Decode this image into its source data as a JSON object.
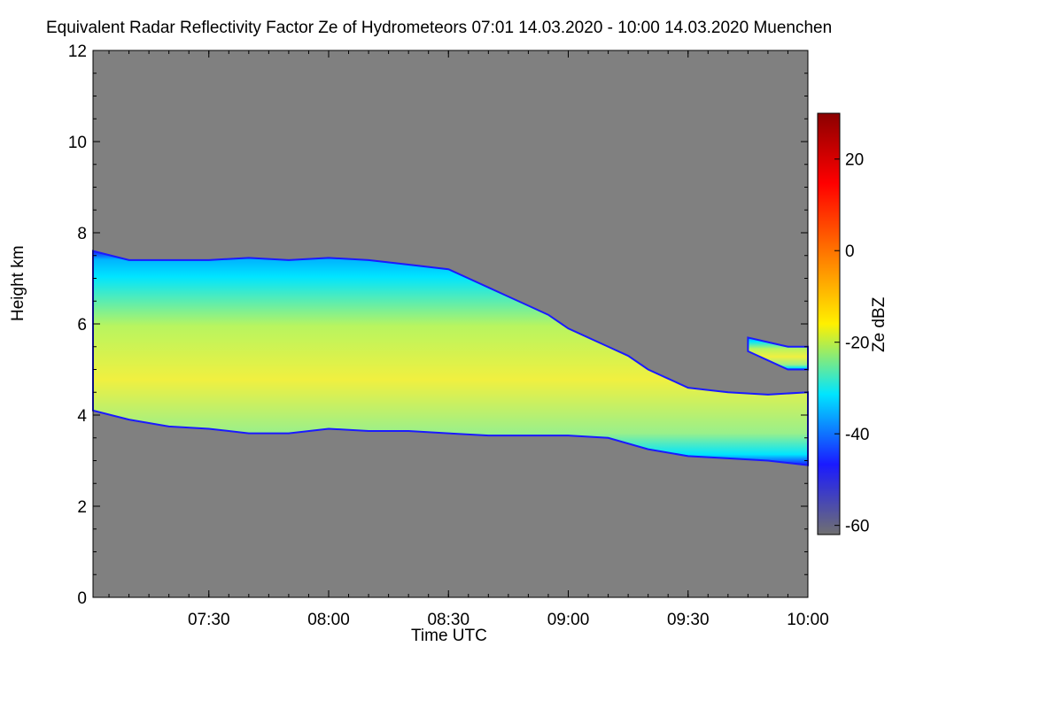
{
  "chart_data": {
    "type": "heatmap",
    "title": "Equivalent Radar Reflectivity Factor Ze of Hydrometeors   07:01 14.03.2020 - 10:00 14.03.2020 Muenchen",
    "xlabel": "Time UTC",
    "ylabel": "Height km",
    "x_start": "07:01",
    "x_end": "10:00",
    "x_ticks": [
      "07:30",
      "08:00",
      "08:30",
      "09:00",
      "09:30",
      "10:00"
    ],
    "x_tick_minutes": [
      30,
      60,
      90,
      120,
      150,
      180
    ],
    "xlim_minutes": [
      1,
      180
    ],
    "ylim": [
      0,
      12
    ],
    "y_ticks": [
      0,
      2,
      4,
      6,
      8,
      10,
      12
    ],
    "colorbar": {
      "label": "Ze dBZ",
      "range": [
        -62,
        30
      ],
      "ticks": [
        -60,
        -40,
        -20,
        0,
        20
      ],
      "colors": [
        "#707070",
        "#1a1aff",
        "#00e5ff",
        "#fff000",
        "#ff7800",
        "#ff0000",
        "#8b0000"
      ]
    },
    "background_color": "#808080",
    "cloud_layer": {
      "description_value_range_dbz": [
        -45,
        -5
      ],
      "top_km": [
        [
          1,
          7.6
        ],
        [
          10,
          7.4
        ],
        [
          20,
          7.4
        ],
        [
          30,
          7.4
        ],
        [
          40,
          7.45
        ],
        [
          50,
          7.4
        ],
        [
          60,
          7.45
        ],
        [
          70,
          7.4
        ],
        [
          80,
          7.3
        ],
        [
          90,
          7.2
        ],
        [
          95,
          7.0
        ],
        [
          100,
          6.8
        ],
        [
          105,
          6.6
        ],
        [
          110,
          6.4
        ],
        [
          115,
          6.2
        ],
        [
          120,
          5.9
        ],
        [
          125,
          5.7
        ],
        [
          130,
          5.5
        ],
        [
          135,
          5.3
        ],
        [
          140,
          5.0
        ],
        [
          145,
          4.8
        ],
        [
          150,
          4.6
        ],
        [
          160,
          4.5
        ],
        [
          170,
          4.45
        ],
        [
          180,
          4.5
        ]
      ],
      "base_km": [
        [
          1,
          4.1
        ],
        [
          10,
          3.9
        ],
        [
          20,
          3.75
        ],
        [
          30,
          3.7
        ],
        [
          40,
          3.6
        ],
        [
          50,
          3.6
        ],
        [
          60,
          3.7
        ],
        [
          70,
          3.65
        ],
        [
          80,
          3.65
        ],
        [
          90,
          3.6
        ],
        [
          100,
          3.55
        ],
        [
          110,
          3.55
        ],
        [
          120,
          3.55
        ],
        [
          130,
          3.5
        ],
        [
          140,
          3.25
        ],
        [
          150,
          3.1
        ],
        [
          160,
          3.05
        ],
        [
          170,
          3.0
        ],
        [
          180,
          2.9
        ]
      ]
    },
    "upper_patch": {
      "top_km": [
        [
          165,
          5.7
        ],
        [
          170,
          5.6
        ],
        [
          175,
          5.5
        ],
        [
          180,
          5.5
        ]
      ],
      "base_km": [
        [
          165,
          5.4
        ],
        [
          170,
          5.2
        ],
        [
          175,
          5.0
        ],
        [
          180,
          5.0
        ]
      ]
    }
  }
}
